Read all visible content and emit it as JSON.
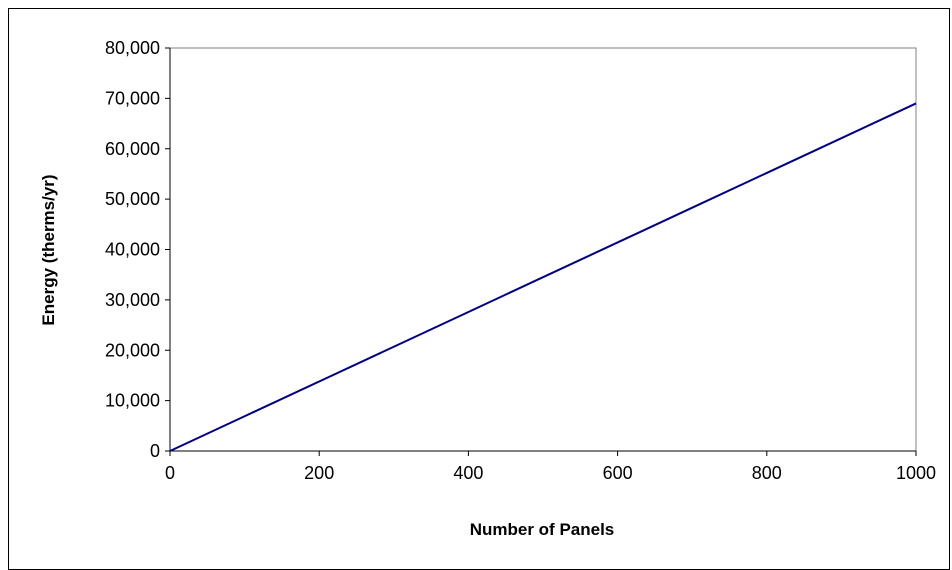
{
  "chart_data": {
    "type": "line",
    "title": "",
    "xlabel": "Number of Panels",
    "ylabel": "Energy (therms/yr)",
    "xlim": [
      0,
      1000
    ],
    "ylim": [
      0,
      80000
    ],
    "x_ticks": [
      0,
      200,
      400,
      600,
      800,
      1000
    ],
    "x_tick_labels": [
      "0",
      "200",
      "400",
      "600",
      "800",
      "1000"
    ],
    "y_ticks": [
      0,
      10000,
      20000,
      30000,
      40000,
      50000,
      60000,
      70000,
      80000
    ],
    "y_tick_labels": [
      "0",
      "10,000",
      "20,000",
      "30,000",
      "40,000",
      "50,000",
      "60,000",
      "70,000",
      "80,000"
    ],
    "grid": false,
    "legend": "none",
    "line_color": "#000080",
    "series": [
      {
        "x": [
          0,
          100,
          200,
          300,
          400,
          500,
          600,
          700,
          800,
          900,
          1000
        ],
        "values": [
          0,
          6900,
          13800,
          20700,
          27600,
          34500,
          41400,
          48300,
          55200,
          62100,
          69000
        ]
      }
    ]
  }
}
